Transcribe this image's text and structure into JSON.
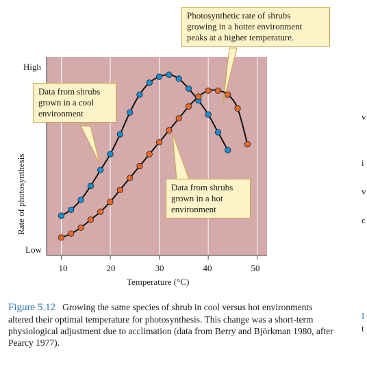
{
  "chart_data": {
    "type": "scatter",
    "xlabel": "Temperature (°C)",
    "ylabel": "Rate of photosynthesis",
    "xlim": [
      7,
      52
    ],
    "ylim": [
      0,
      100
    ],
    "x_ticks": [
      "10",
      "20",
      "30",
      "40",
      "50"
    ],
    "y_tick_labels": {
      "high": "High",
      "low": "Low"
    },
    "series": [
      {
        "color": "#1a8fd1",
        "x": [
          10,
          12,
          14,
          16,
          18,
          20,
          22,
          24,
          26,
          28,
          30,
          32,
          34,
          36,
          38,
          40,
          42,
          44
        ],
        "y": [
          20,
          23,
          28,
          35,
          43,
          51,
          61,
          72,
          81,
          87,
          90,
          91,
          89,
          84,
          78,
          71,
          62,
          53
        ]
      },
      {
        "color": "#e8692a",
        "x": [
          10,
          12,
          14,
          16,
          18,
          20,
          22,
          24,
          26,
          28,
          30,
          32,
          34,
          36,
          38,
          40,
          42,
          44,
          46,
          48
        ],
        "y": [
          9,
          11,
          14,
          18,
          22,
          27,
          33,
          39,
          45,
          51,
          57,
          63,
          69,
          75,
          80,
          83,
          83,
          81,
          74,
          56
        ]
      }
    ],
    "annotations": [
      {
        "text_lines": [
          "Photosynthetic rate of shrubs",
          "growing in a hotter environment",
          "peaks at a higher temperature."
        ]
      },
      {
        "text_lines": [
          "Data from shrubs",
          "grown in a cool",
          "environment"
        ]
      },
      {
        "text_lines": [
          "Data from shrubs",
          "grown in a hot",
          "environment"
        ]
      }
    ]
  },
  "caption": {
    "figure_label": "Figure 5.12",
    "text": "Growing the same species of shrub in cool versus hot environments altered their optimal temperature for photosynthesis. This change was a short-term physiological adjustment due to acclimation (data from Berry and Björkman 1980, after Pearcy 1977)."
  },
  "edge_fragments": [
    "v",
    "i",
    "v",
    "c",
    "I",
    "t"
  ]
}
